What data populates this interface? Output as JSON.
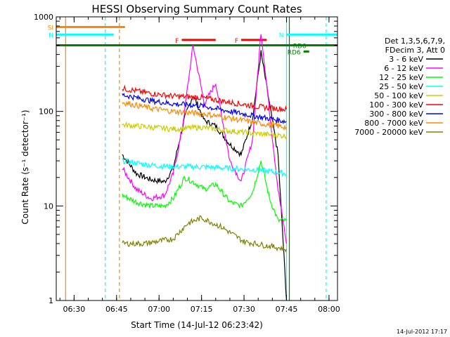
{
  "chart_data": {
    "type": "line",
    "title": "HESSI Observing Summary Count Rates",
    "xlabel": "Start Time (14-Jul-12 06:23:42)",
    "ylabel": "Count Rate (s⁻¹ detector⁻¹)",
    "yscale": "log",
    "xlim": [
      "06:23:42",
      "08:03:00"
    ],
    "ylim": [
      1,
      1000
    ],
    "x_ticks": [
      "06:30",
      "06:45",
      "07:00",
      "07:15",
      "07:30",
      "07:45",
      "08:00"
    ],
    "y_ticks": [
      "1",
      "10",
      "100",
      "1000"
    ],
    "grid": false,
    "legend_position": "right",
    "legend_header": [
      "Det 1,3,5,6,7,9,",
      "FDecim 3, Att 0"
    ],
    "series": [
      {
        "name": "3 - 6 keV",
        "color": "#000000",
        "x": [
          "06:47",
          "06:52",
          "06:57",
          "07:02",
          "07:05",
          "07:09",
          "07:12",
          "07:16",
          "07:20",
          "07:25",
          "07:29",
          "07:33",
          "07:36",
          "07:39",
          "07:42",
          "07:45"
        ],
        "values": [
          35,
          22,
          19,
          18,
          25,
          85,
          150,
          80,
          70,
          45,
          35,
          85,
          420,
          120,
          35,
          1
        ]
      },
      {
        "name": "6 - 12 keV",
        "color": "#ff00ff",
        "x": [
          "06:47",
          "06:52",
          "06:57",
          "07:02",
          "07:05",
          "07:08",
          "07:12",
          "07:16",
          "07:20",
          "07:25",
          "07:29",
          "07:33",
          "07:36",
          "07:39",
          "07:42",
          "07:45"
        ],
        "values": [
          25,
          15,
          12,
          13,
          22,
          60,
          500,
          120,
          200,
          30,
          18,
          50,
          700,
          100,
          15,
          4
        ]
      },
      {
        "name": "12 - 25 keV",
        "color": "#00ff00",
        "x": [
          "06:47",
          "06:52",
          "06:57",
          "07:02",
          "07:05",
          "07:09",
          "07:12",
          "07:16",
          "07:20",
          "07:25",
          "07:29",
          "07:33",
          "07:36",
          "07:39",
          "07:42",
          "07:45"
        ],
        "values": [
          13,
          11,
          10,
          10,
          12,
          20,
          18,
          15,
          17,
          11,
          10,
          14,
          30,
          12,
          7,
          7
        ]
      },
      {
        "name": "25 - 50 keV",
        "color": "#00ffff",
        "x": [
          "06:47",
          "06:57",
          "07:05",
          "07:15",
          "07:25",
          "07:35",
          "07:45"
        ],
        "values": [
          30,
          27,
          26,
          26,
          25,
          24,
          22
        ]
      },
      {
        "name": "50 - 100 keV",
        "color": "#cccc00",
        "x": [
          "06:47",
          "06:57",
          "07:05",
          "07:15",
          "07:25",
          "07:35",
          "07:45"
        ],
        "values": [
          72,
          68,
          65,
          68,
          62,
          58,
          55
        ]
      },
      {
        "name": "100 - 300 keV",
        "color": "#ff0000",
        "x": [
          "06:47",
          "06:57",
          "07:05",
          "07:15",
          "07:25",
          "07:35",
          "07:45"
        ],
        "values": [
          175,
          155,
          145,
          140,
          125,
          112,
          105
        ]
      },
      {
        "name": "300 - 800 keV",
        "color": "#0000ff",
        "x": [
          "06:47",
          "06:57",
          "07:05",
          "07:15",
          "07:25",
          "07:35",
          "07:45"
        ],
        "values": [
          150,
          130,
          120,
          115,
          100,
          88,
          78
        ]
      },
      {
        "name": "800 - 7000 keV",
        "color": "#ff8800",
        "x": [
          "06:47",
          "06:57",
          "07:05",
          "07:15",
          "07:25",
          "07:35",
          "07:45"
        ],
        "values": [
          125,
          108,
          100,
          95,
          85,
          75,
          68
        ]
      },
      {
        "name": "7000 - 20000 keV",
        "color": "#808000",
        "x": [
          "06:47",
          "06:55",
          "07:05",
          "07:10",
          "07:15",
          "07:22",
          "07:30",
          "07:38",
          "07:45"
        ],
        "values": [
          4,
          4,
          4.5,
          6.5,
          7.5,
          6,
          4.2,
          3.8,
          3.5
        ]
      }
    ],
    "flag_bars": [
      {
        "label": "SI",
        "color": "#ff8800",
        "x": [
          "06:23:42",
          "06:48"
        ],
        "y": 780
      },
      {
        "label": "N",
        "color": "#00ffff",
        "x": [
          "06:23:42",
          "06:44"
        ],
        "y": 650
      },
      {
        "label": "N",
        "color": "#00ffff",
        "x": [
          "07:45",
          "08:03"
        ],
        "y": 650
      },
      {
        "label": "F",
        "color": "#ff0000",
        "x": [
          "07:08",
          "07:20"
        ],
        "y": 570
      },
      {
        "label": "F",
        "color": "#ff0000",
        "x": [
          "07:29",
          "07:38"
        ],
        "y": 570
      },
      {
        "label": "",
        "color": "#008000",
        "x": [
          "06:23:42",
          "08:03"
        ],
        "y": 500
      },
      {
        "label": "RD0",
        "color": "#008000",
        "x": [
          "07:53",
          "07:53"
        ],
        "y": 500
      },
      {
        "label": "RD6",
        "color": "#008000",
        "x": [
          "07:51",
          "07:53"
        ],
        "y": 430
      }
    ],
    "vertical_markers": [
      {
        "time": "06:27",
        "color": "#ff8800",
        "style": "solid"
      },
      {
        "time": "06:41",
        "color": "#00ffff",
        "style": "dashed"
      },
      {
        "time": "06:46",
        "color": "#ff8800",
        "style": "dashed"
      },
      {
        "time": "07:45",
        "color": "#00ffff",
        "style": "solid"
      },
      {
        "time": "07:46",
        "color": "#008000",
        "style": "solid"
      },
      {
        "time": "07:59",
        "color": "#00ffff",
        "style": "dashed"
      }
    ]
  },
  "footer": {
    "timestamp": "14-Jul-2012 17:17"
  }
}
